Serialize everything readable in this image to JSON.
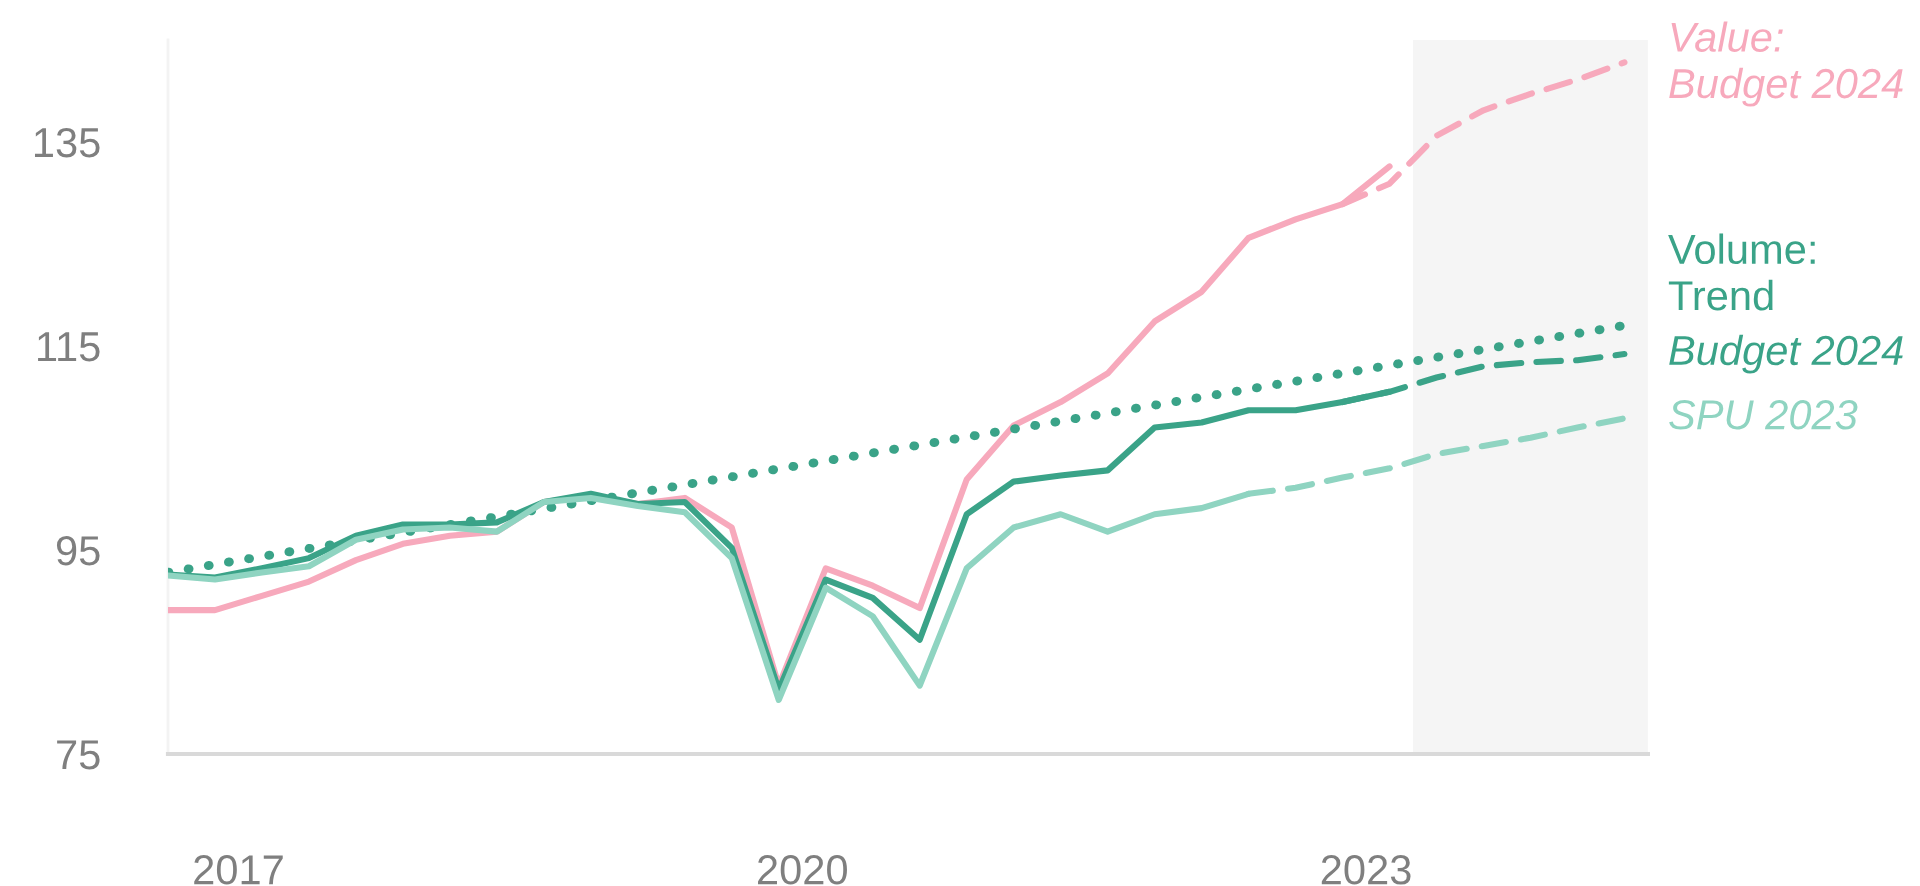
{
  "chart_data": {
    "type": "line",
    "x": [
      2017.125,
      2017.375,
      2017.625,
      2017.875,
      2018.125,
      2018.375,
      2018.625,
      2018.875,
      2019.125,
      2019.375,
      2019.625,
      2019.875,
      2020.125,
      2020.375,
      2020.625,
      2020.875,
      2021.125,
      2021.375,
      2021.625,
      2021.875,
      2022.125,
      2022.375,
      2022.625,
      2022.875,
      2023.125,
      2023.375,
      2023.625,
      2023.875,
      2024.125,
      2024.375,
      2024.625,
      2024.875
    ],
    "series": [
      {
        "color": "#f7a9bc",
        "line_style": "solid",
        "values": [
          89.1,
          89.1,
          90.5,
          91.9,
          94.0,
          95.6,
          96.4,
          96.8,
          99.7,
          100.3,
          99.5,
          100.1,
          97.2,
          81.7,
          93.2,
          91.5,
          89.3,
          101.9,
          107.2,
          109.5,
          112.3,
          117.4,
          120.3,
          125.6,
          127.4,
          128.9,
          132.6,
          null,
          null,
          null,
          null,
          null
        ]
      },
      {
        "name": "Value:\nBudget 2024",
        "color": "#f7a9bc",
        "line_style": "dashed",
        "values": [
          null,
          null,
          null,
          null,
          null,
          null,
          null,
          null,
          null,
          null,
          null,
          null,
          null,
          null,
          null,
          null,
          null,
          null,
          null,
          null,
          null,
          null,
          null,
          null,
          null,
          128.9,
          130.9,
          135.6,
          138.1,
          139.7,
          141.1,
          142.8
        ]
      },
      {
        "color": "#3aa388",
        "line_style": "solid",
        "values": [
          92.6,
          92.3,
          93.2,
          94.2,
          96.4,
          97.5,
          97.5,
          97.7,
          99.7,
          100.5,
          99.5,
          99.7,
          95.2,
          81.3,
          92.1,
          90.3,
          86.2,
          98.5,
          101.7,
          102.3,
          102.8,
          107.0,
          107.5,
          108.7,
          108.7,
          109.5,
          110.5,
          null,
          null,
          null,
          null,
          null
        ]
      },
      {
        "name": "Volume:\nTrend",
        "color": "#3aa388",
        "line_style": "dotted",
        "x": [
          2017.125,
          2024.875
        ],
        "values": [
          92.8,
          117.0
        ]
      },
      {
        "name": "Budget 2024",
        "color": "#3aa388",
        "line_style": "dashed",
        "values": [
          null,
          null,
          null,
          null,
          null,
          null,
          null,
          null,
          null,
          null,
          null,
          null,
          null,
          null,
          null,
          null,
          null,
          null,
          null,
          null,
          null,
          null,
          null,
          null,
          null,
          109.5,
          110.5,
          111.9,
          113.0,
          113.4,
          113.6,
          114.2
        ]
      },
      {
        "color": "#8fd4c1",
        "line_style": "solid",
        "values": [
          92.5,
          92.1,
          92.8,
          93.4,
          96.0,
          97.0,
          97.2,
          96.8,
          99.7,
          100.1,
          99.3,
          98.7,
          94.2,
          80.3,
          91.3,
          88.5,
          81.7,
          93.2,
          97.2,
          98.5,
          96.8,
          98.5,
          99.1,
          100.5,
          null,
          null,
          null,
          null,
          null,
          null,
          null,
          null
        ]
      },
      {
        "name": "SPU 2023",
        "color": "#8fd4c1",
        "line_style": "dashed",
        "values": [
          null,
          null,
          null,
          null,
          null,
          null,
          null,
          null,
          null,
          null,
          null,
          null,
          null,
          null,
          null,
          null,
          null,
          null,
          null,
          null,
          null,
          null,
          null,
          100.5,
          101.1,
          102.1,
          103.0,
          104.4,
          105.2,
          106.0,
          107.0,
          107.9
        ]
      }
    ],
    "xlim": [
      2017.125,
      2025.0
    ],
    "xticks": [
      {
        "value": 2017.5,
        "label": "2017"
      },
      {
        "value": 2020.5,
        "label": "2020"
      },
      {
        "value": 2023.5,
        "label": "2023"
      }
    ],
    "ylim": [
      75,
      145
    ],
    "yticks": [
      75,
      95,
      115,
      135
    ],
    "bands": [
      {
        "axis": "x",
        "from": 2023.75,
        "to": 2025.0,
        "color": "#f5f5f5"
      }
    ],
    "grid": false,
    "legend": false
  }
}
